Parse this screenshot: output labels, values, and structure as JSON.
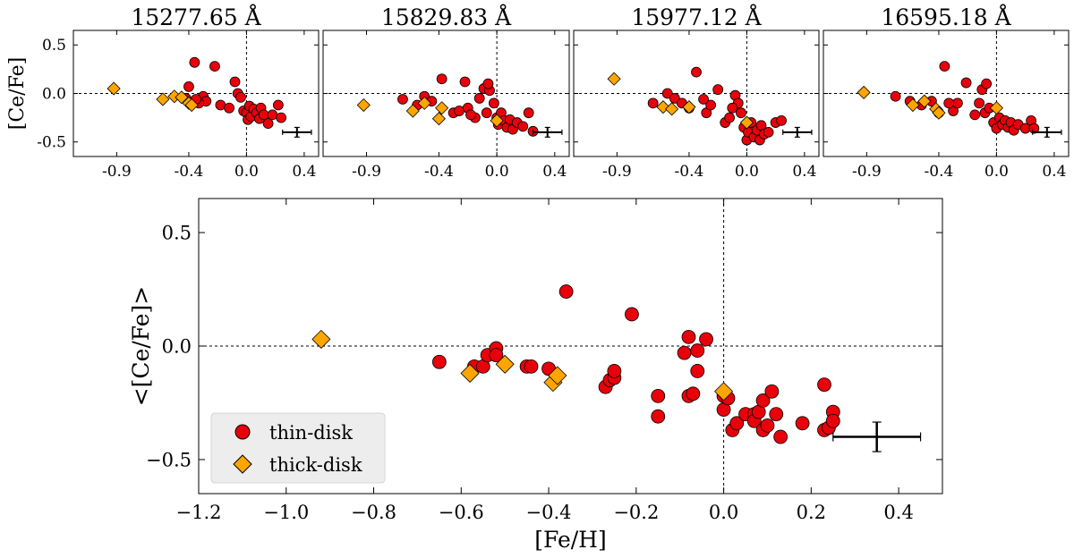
{
  "chart_data": {
    "type": "scatter",
    "colors": {
      "thin": "#e8000b",
      "thick": "#ffa500",
      "edge": "#000000"
    },
    "legend": {
      "position": "lower-left",
      "entries": [
        {
          "label": "thin-disk",
          "marker": "circle",
          "color": "#e8000b"
        },
        {
          "label": "thick-disk",
          "marker": "diamond",
          "color": "#ffa500"
        }
      ]
    },
    "panels": [
      {
        "title": "15277.65 Å",
        "ylabel": "[Ce/Fe]",
        "xlim": [
          -1.2,
          0.5
        ],
        "ylim": [
          -0.65,
          0.65
        ],
        "xticks": [
          "-0.9",
          "-0.4",
          "0.0",
          "0.4"
        ],
        "xtick_values": [
          -0.9,
          -0.4,
          0.0,
          0.4
        ],
        "yticks": [
          "0.5",
          "0.0",
          "-0.5"
        ],
        "ytick_values": [
          0.5,
          0.0,
          -0.5
        ],
        "errorbar": {
          "x": 0.35,
          "y": -0.4,
          "xerr": 0.1,
          "yerr": 0.05
        },
        "thin": [
          [
            -0.4,
            0.07
          ],
          [
            -0.36,
            0.32
          ],
          [
            -0.3,
            -0.03
          ],
          [
            -0.28,
            -0.08
          ],
          [
            -0.22,
            0.28
          ],
          [
            -0.18,
            -0.12
          ],
          [
            -0.12,
            -0.15
          ],
          [
            -0.08,
            0.12
          ],
          [
            -0.06,
            0.0
          ],
          [
            -0.04,
            -0.04
          ],
          [
            -0.02,
            -0.18
          ],
          [
            0.0,
            -0.2
          ],
          [
            0.01,
            -0.27
          ],
          [
            0.02,
            -0.13
          ],
          [
            0.03,
            -0.24
          ],
          [
            0.05,
            -0.16
          ],
          [
            0.07,
            -0.2
          ],
          [
            0.09,
            -0.26
          ],
          [
            0.1,
            -0.15
          ],
          [
            0.12,
            -0.22
          ],
          [
            0.15,
            -0.31
          ],
          [
            0.18,
            -0.22
          ],
          [
            0.22,
            -0.12
          ],
          [
            0.24,
            -0.25
          ],
          [
            -0.33,
            -0.1
          ],
          [
            -0.35,
            -0.06
          ],
          [
            -0.42,
            -0.05
          ]
        ],
        "thick": [
          [
            -0.92,
            0.05
          ],
          [
            -0.58,
            -0.06
          ],
          [
            -0.5,
            -0.03
          ],
          [
            -0.45,
            -0.04
          ],
          [
            -0.4,
            -0.1
          ],
          [
            -0.38,
            -0.12
          ]
        ]
      },
      {
        "title": "15829.83 Å",
        "ylabel": "",
        "xlim": [
          -1.2,
          0.5
        ],
        "ylim": [
          -0.65,
          0.65
        ],
        "xticks": [
          "-0.9",
          "-0.4",
          "0.0",
          "0.4"
        ],
        "xtick_values": [
          -0.9,
          -0.4,
          0.0,
          0.4
        ],
        "yticks": [],
        "ytick_values": [
          0.5,
          0.0,
          -0.5
        ],
        "errorbar": {
          "x": 0.35,
          "y": -0.4,
          "xerr": 0.1,
          "yerr": 0.05
        },
        "thin": [
          [
            -0.65,
            -0.06
          ],
          [
            -0.55,
            -0.12
          ],
          [
            -0.5,
            -0.03
          ],
          [
            -0.45,
            -0.08
          ],
          [
            -0.38,
            0.15
          ],
          [
            -0.3,
            -0.2
          ],
          [
            -0.26,
            -0.18
          ],
          [
            -0.22,
            0.12
          ],
          [
            -0.15,
            -0.25
          ],
          [
            -0.12,
            -0.05
          ],
          [
            -0.09,
            0.05
          ],
          [
            -0.07,
            -0.2
          ],
          [
            -0.05,
            0.03
          ],
          [
            -0.02,
            -0.1
          ],
          [
            0.0,
            -0.25
          ],
          [
            0.01,
            -0.32
          ],
          [
            0.03,
            -0.2
          ],
          [
            0.05,
            -0.28
          ],
          [
            0.07,
            -0.35
          ],
          [
            0.09,
            -0.27
          ],
          [
            0.11,
            -0.37
          ],
          [
            0.14,
            -0.3
          ],
          [
            0.18,
            -0.34
          ],
          [
            0.22,
            -0.2
          ],
          [
            0.25,
            -0.39
          ],
          [
            -0.2,
            -0.15
          ],
          [
            -0.18,
            -0.22
          ],
          [
            -0.06,
            0.1
          ]
        ],
        "thick": [
          [
            -0.92,
            -0.12
          ],
          [
            -0.58,
            -0.18
          ],
          [
            -0.5,
            -0.1
          ],
          [
            -0.4,
            -0.26
          ],
          [
            -0.38,
            -0.15
          ],
          [
            0.0,
            -0.28
          ]
        ]
      },
      {
        "title": "15977.12 Å",
        "ylabel": "",
        "xlim": [
          -1.2,
          0.5
        ],
        "ylim": [
          -0.65,
          0.65
        ],
        "xticks": [
          "-0.9",
          "-0.4",
          "0.0",
          "0.4"
        ],
        "xtick_values": [
          -0.9,
          -0.4,
          0.0,
          0.4
        ],
        "yticks": [],
        "ytick_values": [
          0.5,
          0.0,
          -0.5
        ],
        "errorbar": {
          "x": 0.35,
          "y": -0.4,
          "xerr": 0.1,
          "yerr": 0.05
        },
        "thin": [
          [
            -0.65,
            -0.1
          ],
          [
            -0.55,
            0.0
          ],
          [
            -0.5,
            -0.05
          ],
          [
            -0.45,
            -0.1
          ],
          [
            -0.35,
            0.22
          ],
          [
            -0.28,
            -0.2
          ],
          [
            -0.25,
            -0.12
          ],
          [
            -0.2,
            0.04
          ],
          [
            -0.15,
            -0.3
          ],
          [
            -0.12,
            -0.25
          ],
          [
            -0.08,
            -0.02
          ],
          [
            -0.06,
            -0.1
          ],
          [
            -0.04,
            -0.2
          ],
          [
            -0.02,
            -0.35
          ],
          [
            0.0,
            -0.48
          ],
          [
            0.01,
            -0.4
          ],
          [
            0.03,
            -0.3
          ],
          [
            0.05,
            -0.45
          ],
          [
            0.07,
            -0.38
          ],
          [
            0.09,
            -0.48
          ],
          [
            0.1,
            -0.33
          ],
          [
            0.12,
            -0.42
          ],
          [
            0.15,
            -0.4
          ],
          [
            0.2,
            -0.3
          ],
          [
            0.24,
            -0.28
          ],
          [
            -0.4,
            -0.15
          ],
          [
            -0.3,
            -0.06
          ],
          [
            -0.1,
            -0.15
          ]
        ],
        "thick": [
          [
            -0.92,
            0.15
          ],
          [
            -0.58,
            -0.14
          ],
          [
            -0.52,
            -0.16
          ],
          [
            -0.4,
            -0.14
          ],
          [
            0.0,
            -0.3
          ]
        ]
      },
      {
        "title": "16595.18 Å",
        "ylabel": "",
        "xlim": [
          -1.2,
          0.5
        ],
        "ylim": [
          -0.65,
          0.65
        ],
        "xticks": [
          "-0.9",
          "-0.4",
          "0.0",
          "0.4"
        ],
        "xtick_values": [
          -0.9,
          -0.4,
          0.0,
          0.4
        ],
        "yticks": [],
        "ytick_values": [
          0.5,
          0.0,
          -0.5
        ],
        "errorbar": {
          "x": 0.35,
          "y": -0.4,
          "xerr": 0.1,
          "yerr": 0.05
        },
        "thin": [
          [
            -0.7,
            -0.03
          ],
          [
            -0.6,
            -0.08
          ],
          [
            -0.52,
            -0.12
          ],
          [
            -0.45,
            -0.08
          ],
          [
            -0.36,
            0.28
          ],
          [
            -0.3,
            -0.18
          ],
          [
            -0.27,
            -0.1
          ],
          [
            -0.21,
            0.11
          ],
          [
            -0.15,
            -0.22
          ],
          [
            -0.1,
            0.04
          ],
          [
            -0.08,
            -0.2
          ],
          [
            -0.05,
            -0.15
          ],
          [
            -0.02,
            -0.3
          ],
          [
            0.0,
            -0.36
          ],
          [
            0.02,
            -0.25
          ],
          [
            0.04,
            -0.32
          ],
          [
            0.06,
            -0.28
          ],
          [
            0.08,
            -0.35
          ],
          [
            0.1,
            -0.3
          ],
          [
            0.12,
            -0.38
          ],
          [
            0.15,
            -0.32
          ],
          [
            0.2,
            -0.36
          ],
          [
            0.24,
            -0.28
          ],
          [
            0.26,
            -0.36
          ],
          [
            -0.4,
            -0.2
          ],
          [
            -0.33,
            -0.1
          ],
          [
            -0.12,
            -0.1
          ],
          [
            -0.07,
            0.1
          ]
        ],
        "thick": [
          [
            -0.92,
            0.01
          ],
          [
            -0.58,
            -0.12
          ],
          [
            -0.5,
            -0.08
          ],
          [
            -0.42,
            -0.16
          ],
          [
            -0.4,
            -0.2
          ],
          [
            0.0,
            -0.15
          ]
        ]
      },
      {
        "title": "",
        "ylabel": "<[Ce/Fe]>",
        "xlabel": "[Fe/H]",
        "xlim": [
          -1.2,
          0.5
        ],
        "ylim": [
          -0.65,
          0.65
        ],
        "xticks": [
          "−1.2",
          "−1.0",
          "−0.8",
          "−0.6",
          "−0.4",
          "−0.2",
          "0.0",
          "0.2",
          "0.4"
        ],
        "xtick_values": [
          -1.2,
          -1.0,
          -0.8,
          -0.6,
          -0.4,
          -0.2,
          0.0,
          0.2,
          0.4
        ],
        "yticks": [
          "0.5",
          "0.0",
          "−0.5"
        ],
        "ytick_values": [
          0.5,
          0.0,
          -0.5
        ],
        "errorbar": {
          "x": 0.35,
          "y": -0.4,
          "xerr": 0.1,
          "yerr": 0.065
        },
        "thin": [
          [
            -0.65,
            -0.07
          ],
          [
            -0.57,
            -0.09
          ],
          [
            -0.55,
            -0.09
          ],
          [
            -0.54,
            -0.04
          ],
          [
            -0.52,
            -0.01
          ],
          [
            -0.52,
            -0.04
          ],
          [
            -0.45,
            -0.09
          ],
          [
            -0.44,
            -0.09
          ],
          [
            -0.4,
            -0.1
          ],
          [
            -0.36,
            0.24
          ],
          [
            -0.27,
            -0.18
          ],
          [
            -0.26,
            -0.15
          ],
          [
            -0.25,
            -0.14
          ],
          [
            -0.25,
            -0.11
          ],
          [
            -0.21,
            0.14
          ],
          [
            -0.15,
            -0.22
          ],
          [
            -0.15,
            -0.31
          ],
          [
            -0.09,
            -0.03
          ],
          [
            -0.08,
            0.04
          ],
          [
            -0.08,
            -0.22
          ],
          [
            -0.07,
            -0.21
          ],
          [
            -0.06,
            -0.02
          ],
          [
            -0.06,
            -0.11
          ],
          [
            -0.04,
            0.03
          ],
          [
            0.0,
            -0.22
          ],
          [
            0.0,
            -0.28
          ],
          [
            0.01,
            -0.23
          ],
          [
            0.02,
            -0.37
          ],
          [
            0.03,
            -0.34
          ],
          [
            0.05,
            -0.3
          ],
          [
            0.07,
            -0.3
          ],
          [
            0.07,
            -0.33
          ],
          [
            0.08,
            -0.29
          ],
          [
            0.09,
            -0.37
          ],
          [
            0.09,
            -0.24
          ],
          [
            0.1,
            -0.35
          ],
          [
            0.11,
            -0.2
          ],
          [
            0.12,
            -0.3
          ],
          [
            0.13,
            -0.4
          ],
          [
            0.18,
            -0.34
          ],
          [
            0.23,
            -0.17
          ],
          [
            0.23,
            -0.37
          ],
          [
            0.24,
            -0.36
          ],
          [
            0.25,
            -0.29
          ],
          [
            0.25,
            -0.33
          ]
        ],
        "thick": [
          [
            -0.92,
            0.03
          ],
          [
            -0.58,
            -0.12
          ],
          [
            -0.5,
            -0.08
          ],
          [
            -0.39,
            -0.16
          ],
          [
            -0.38,
            -0.13
          ],
          [
            0.0,
            -0.2
          ]
        ]
      }
    ]
  }
}
